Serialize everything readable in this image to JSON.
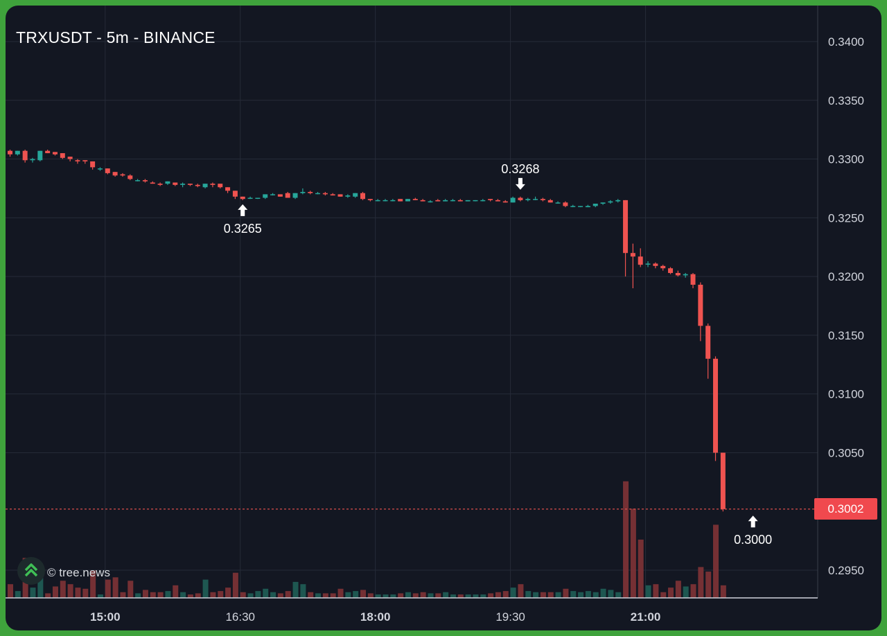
{
  "header": {
    "title": "TRXUSDT - 5m - BINANCE"
  },
  "watermark": {
    "text": "© tree.news"
  },
  "colors": {
    "background": "#131722",
    "frame": "#3fa33c",
    "grid": "#262b38",
    "up": "#26a69a",
    "down": "#ef5350",
    "axis_text": "#d1d4dc"
  },
  "chart_data": {
    "type": "candlestick",
    "symbol": "TRXUSDT",
    "interval": "5m",
    "exchange": "BINANCE",
    "xlabel": "",
    "ylabel": "",
    "y_ticks": [
      "0.3400",
      "0.3350",
      "0.3300",
      "0.3250",
      "0.3200",
      "0.3150",
      "0.3100",
      "0.3050",
      "0.2950"
    ],
    "x_ticks": [
      {
        "label": "15:00",
        "bold": true
      },
      {
        "label": "16:30",
        "bold": false
      },
      {
        "label": "18:00",
        "bold": true
      },
      {
        "label": "19:30",
        "bold": false
      },
      {
        "label": "21:00",
        "bold": true
      }
    ],
    "last_price": "0.3002",
    "annotations": [
      {
        "label": "0.3265",
        "time": "16:30",
        "price": 0.3265,
        "arrow": "up"
      },
      {
        "label": "0.3268",
        "time": "19:35",
        "price": 0.3268,
        "arrow": "down"
      },
      {
        "label": "0.3000",
        "time": "22:10",
        "price": 0.3,
        "arrow": "up"
      }
    ],
    "start_time": "13:55",
    "candles": [
      [
        0.3307,
        0.3308,
        0.3302,
        0.3304,
        12
      ],
      [
        0.3304,
        0.3307,
        0.3303,
        0.3307,
        6
      ],
      [
        0.3307,
        0.3308,
        0.3297,
        0.3299,
        35
      ],
      [
        0.3299,
        0.3301,
        0.3297,
        0.33,
        9
      ],
      [
        0.3299,
        0.3307,
        0.3298,
        0.3307,
        22
      ],
      [
        0.3307,
        0.3308,
        0.3305,
        0.3305,
        4
      ],
      [
        0.3306,
        0.3306,
        0.3303,
        0.3304,
        10
      ],
      [
        0.3305,
        0.3305,
        0.33,
        0.3301,
        15
      ],
      [
        0.3302,
        0.3302,
        0.3298,
        0.33,
        12
      ],
      [
        0.3299,
        0.33,
        0.3296,
        0.3298,
        9
      ],
      [
        0.3299,
        0.3299,
        0.3296,
        0.3298,
        8
      ],
      [
        0.3298,
        0.3298,
        0.3291,
        0.3293,
        24
      ],
      [
        0.3292,
        0.3293,
        0.329,
        0.3292,
        3
      ],
      [
        0.3292,
        0.3292,
        0.3287,
        0.3288,
        16
      ],
      [
        0.3289,
        0.3289,
        0.3285,
        0.3286,
        18
      ],
      [
        0.3287,
        0.3288,
        0.3285,
        0.3286,
        5
      ],
      [
        0.3286,
        0.3287,
        0.3282,
        0.3283,
        15
      ],
      [
        0.3282,
        0.3283,
        0.3281,
        0.3282,
        4
      ],
      [
        0.3282,
        0.3283,
        0.328,
        0.3281,
        7
      ],
      [
        0.328,
        0.3281,
        0.3279,
        0.3279,
        5
      ],
      [
        0.3279,
        0.328,
        0.3277,
        0.3278,
        5
      ],
      [
        0.3279,
        0.3281,
        0.3278,
        0.3281,
        6
      ],
      [
        0.328,
        0.328,
        0.3277,
        0.3278,
        11
      ],
      [
        0.3278,
        0.328,
        0.3276,
        0.3279,
        5
      ],
      [
        0.3279,
        0.3279,
        0.3277,
        0.3278,
        3
      ],
      [
        0.3278,
        0.3279,
        0.3276,
        0.3277,
        4
      ],
      [
        0.3276,
        0.3279,
        0.3275,
        0.3279,
        16
      ],
      [
        0.3279,
        0.328,
        0.3276,
        0.3278,
        5
      ],
      [
        0.3279,
        0.3279,
        0.3275,
        0.3276,
        6
      ],
      [
        0.3276,
        0.3276,
        0.3271,
        0.3273,
        9
      ],
      [
        0.3273,
        0.3273,
        0.3266,
        0.3268,
        22
      ],
      [
        0.3268,
        0.3268,
        0.3265,
        0.3266,
        5
      ],
      [
        0.3267,
        0.3268,
        0.3266,
        0.3267,
        4
      ],
      [
        0.3267,
        0.3267,
        0.3266,
        0.3267,
        6
      ],
      [
        0.3267,
        0.327,
        0.3266,
        0.327,
        8
      ],
      [
        0.327,
        0.3271,
        0.3269,
        0.327,
        5
      ],
      [
        0.327,
        0.327,
        0.3268,
        0.3268,
        4
      ],
      [
        0.3271,
        0.3272,
        0.3267,
        0.3267,
        6
      ],
      [
        0.3267,
        0.3271,
        0.3266,
        0.3271,
        14
      ],
      [
        0.3271,
        0.3275,
        0.327,
        0.3272,
        12
      ],
      [
        0.3272,
        0.3273,
        0.327,
        0.3271,
        5
      ],
      [
        0.3271,
        0.3272,
        0.327,
        0.3271,
        4
      ],
      [
        0.3271,
        0.3272,
        0.3269,
        0.327,
        4
      ],
      [
        0.327,
        0.3271,
        0.3269,
        0.3269,
        4
      ],
      [
        0.327,
        0.327,
        0.3268,
        0.3268,
        8
      ],
      [
        0.3268,
        0.327,
        0.3267,
        0.3269,
        5
      ],
      [
        0.3268,
        0.3271,
        0.3267,
        0.3271,
        6
      ],
      [
        0.3271,
        0.3272,
        0.3265,
        0.3266,
        7
      ],
      [
        0.3266,
        0.3266,
        0.3264,
        0.3265,
        4
      ],
      [
        0.3265,
        0.3266,
        0.3264,
        0.3265,
        3
      ],
      [
        0.3265,
        0.3266,
        0.3264,
        0.3265,
        3
      ],
      [
        0.3265,
        0.3266,
        0.3264,
        0.3265,
        3
      ],
      [
        0.3266,
        0.3266,
        0.3264,
        0.3264,
        4
      ],
      [
        0.3264,
        0.3266,
        0.3264,
        0.3266,
        5
      ],
      [
        0.3266,
        0.3267,
        0.3265,
        0.3265,
        4
      ],
      [
        0.3265,
        0.3266,
        0.3264,
        0.3264,
        5
      ],
      [
        0.3264,
        0.3265,
        0.3263,
        0.3264,
        4
      ],
      [
        0.3265,
        0.3266,
        0.3264,
        0.3264,
        4
      ],
      [
        0.3264,
        0.3266,
        0.3264,
        0.3265,
        5
      ],
      [
        0.3265,
        0.3266,
        0.3264,
        0.3265,
        3
      ],
      [
        0.3265,
        0.3266,
        0.3264,
        0.3264,
        3
      ],
      [
        0.3264,
        0.3265,
        0.3264,
        0.3265,
        3
      ],
      [
        0.3265,
        0.3265,
        0.3264,
        0.3265,
        3
      ],
      [
        0.3265,
        0.3266,
        0.3264,
        0.3265,
        3
      ],
      [
        0.3266,
        0.3266,
        0.3264,
        0.3265,
        4
      ],
      [
        0.3265,
        0.3266,
        0.3264,
        0.3264,
        5
      ],
      [
        0.3264,
        0.3265,
        0.3263,
        0.3263,
        6
      ],
      [
        0.3263,
        0.3268,
        0.3263,
        0.3267,
        9
      ],
      [
        0.3267,
        0.3268,
        0.3264,
        0.3265,
        12
      ],
      [
        0.3265,
        0.3267,
        0.3264,
        0.3266,
        6
      ],
      [
        0.3266,
        0.3268,
        0.3265,
        0.3266,
        5
      ],
      [
        0.3266,
        0.3267,
        0.3264,
        0.3265,
        5
      ],
      [
        0.3265,
        0.3266,
        0.3263,
        0.3263,
        5
      ],
      [
        0.3263,
        0.3264,
        0.3262,
        0.3263,
        5
      ],
      [
        0.3263,
        0.3264,
        0.3259,
        0.326,
        8
      ],
      [
        0.326,
        0.3261,
        0.3259,
        0.326,
        6
      ],
      [
        0.326,
        0.326,
        0.3259,
        0.326,
        5
      ],
      [
        0.3259,
        0.3261,
        0.3259,
        0.326,
        6
      ],
      [
        0.326,
        0.3262,
        0.3259,
        0.3262,
        5
      ],
      [
        0.3262,
        0.3263,
        0.3261,
        0.3263,
        8
      ],
      [
        0.3263,
        0.3265,
        0.3262,
        0.3264,
        7
      ],
      [
        0.3264,
        0.3266,
        0.3263,
        0.3265,
        5
      ],
      [
        0.3265,
        0.3265,
        0.32,
        0.322,
        102
      ],
      [
        0.322,
        0.3228,
        0.319,
        0.3217,
        78
      ],
      [
        0.3217,
        0.3224,
        0.3208,
        0.321,
        51
      ],
      [
        0.3211,
        0.3213,
        0.3208,
        0.3211,
        11
      ],
      [
        0.3211,
        0.3212,
        0.3207,
        0.3209,
        12
      ],
      [
        0.3209,
        0.321,
        0.3205,
        0.3207,
        5
      ],
      [
        0.3207,
        0.3208,
        0.3202,
        0.3203,
        9
      ],
      [
        0.3203,
        0.3205,
        0.32,
        0.3201,
        15
      ],
      [
        0.3201,
        0.3203,
        0.3199,
        0.3202,
        10
      ],
      [
        0.3202,
        0.3203,
        0.319,
        0.3193,
        12
      ],
      [
        0.3193,
        0.3195,
        0.3145,
        0.3158,
        27
      ],
      [
        0.3158,
        0.316,
        0.3113,
        0.313,
        23
      ],
      [
        0.313,
        0.3132,
        0.3043,
        0.305,
        64
      ],
      [
        0.305,
        0.305,
        0.3,
        0.3002,
        11
      ]
    ]
  }
}
